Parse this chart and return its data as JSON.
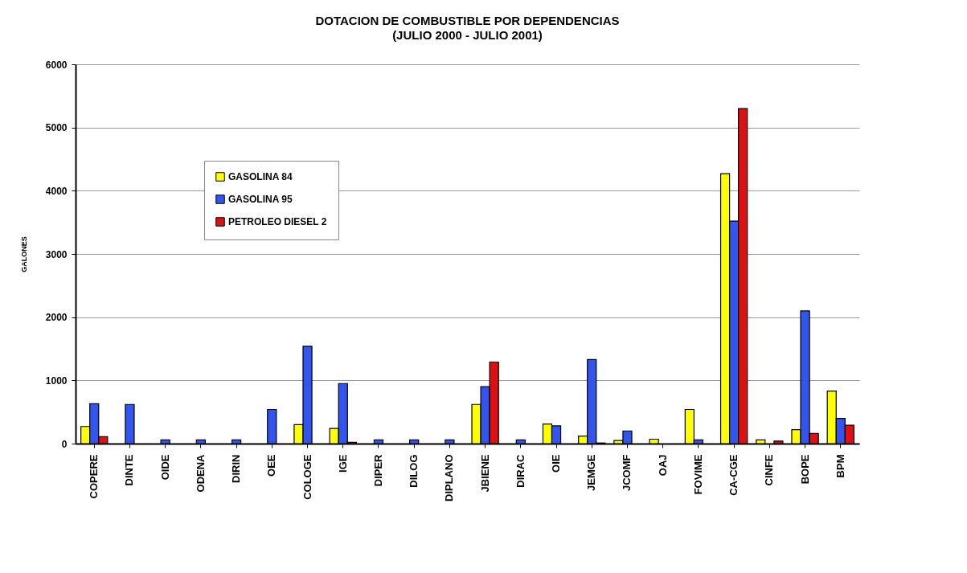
{
  "chart_data": {
    "type": "bar",
    "title": "DOTACION DE COMBUSTIBLE POR DEPENDENCIAS",
    "subtitle": "(JULIO 2000 - JULIO 2001)",
    "ylabel": "GALONES",
    "categories": [
      "COPERE",
      "DINTE",
      "OIDE",
      "ODENA",
      "DIRIN",
      "OEE",
      "COLOGE",
      "IGE",
      "DIPER",
      "DILOG",
      "DIPLANO",
      "JBIENE",
      "DIRAC",
      "OIE",
      "JEMGE",
      "JCOMF",
      "OAJ",
      "FOVIME",
      "CA-CGE",
      "CINFE",
      "BOPE",
      "BPM"
    ],
    "series": [
      {
        "name": "GASOLINA 84",
        "color": "#ffff00",
        "values": [
          270,
          null,
          null,
          null,
          null,
          null,
          300,
          240,
          null,
          null,
          null,
          620,
          null,
          310,
          120,
          50,
          70,
          540,
          4270,
          60,
          220,
          830
        ]
      },
      {
        "name": "GASOLINA 95",
        "color": "#3355ee",
        "values": [
          630,
          620,
          60,
          60,
          60,
          540,
          1540,
          950,
          60,
          60,
          60,
          900,
          60,
          280,
          1330,
          200,
          null,
          60,
          3520,
          null,
          2100,
          400
        ]
      },
      {
        "name": "PETROLEO DIESEL 2",
        "color": "#dd1111",
        "values": [
          110,
          null,
          null,
          null,
          null,
          null,
          null,
          20,
          null,
          null,
          null,
          1290,
          null,
          null,
          10,
          null,
          null,
          null,
          5300,
          40,
          160,
          290
        ]
      }
    ],
    "ylim": [
      0,
      6000
    ],
    "yticks": [
      0,
      1000,
      2000,
      3000,
      4000,
      5000,
      6000
    ],
    "grid": "y",
    "legend": "top left"
  }
}
